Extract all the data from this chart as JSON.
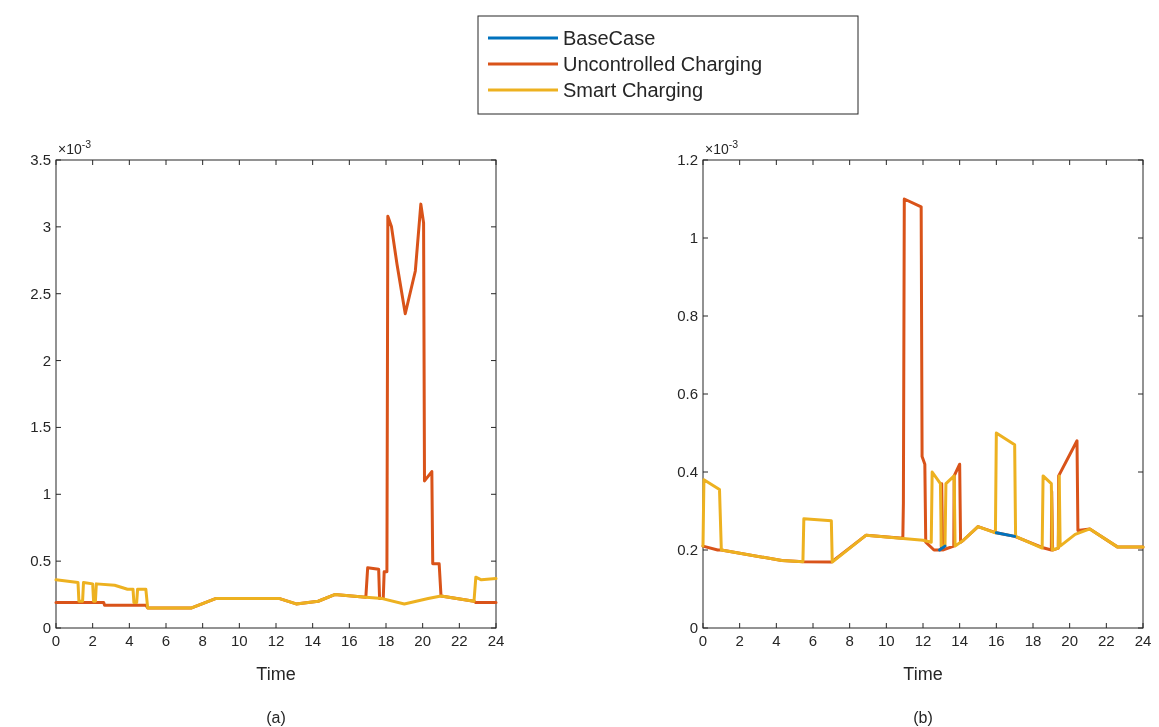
{
  "chart_data": [
    {
      "type": "line",
      "xlabel": "Time",
      "annotations": [
        "×10$^{-3}$",
        "(a)"
      ],
      "xlim": [
        0,
        24
      ],
      "xticks": [
        0,
        2,
        4,
        6,
        8,
        10,
        12,
        14,
        16,
        18,
        20,
        22,
        24
      ],
      "ylim": [
        0,
        3.5
      ],
      "yticks": [
        0,
        0.5,
        1,
        1.5,
        2,
        2.5,
        3,
        3.5
      ],
      "series": [
        {
          "color": "#d95319",
          "x": [
            0,
            2.6,
            2.65,
            4.9,
            5.0,
            7.4,
            8.7,
            12.2,
            13.1,
            14.3,
            15.2,
            16.9,
            17.0,
            17.6,
            17.65,
            17.85,
            17.9,
            18.05,
            18.1,
            18.3,
            18.6,
            19.05,
            19.6,
            19.9,
            20.05,
            20.1,
            20.5,
            20.55,
            20.9,
            21.0,
            22.8,
            22.9,
            24
          ],
          "values": [
            0.19,
            0.19,
            0.17,
            0.17,
            0.15,
            0.15,
            0.22,
            0.22,
            0.18,
            0.2,
            0.25,
            0.23,
            0.45,
            0.44,
            0.22,
            0.22,
            0.42,
            0.42,
            3.08,
            3.0,
            2.72,
            2.35,
            2.67,
            3.17,
            3.03,
            1.1,
            1.17,
            0.48,
            0.48,
            0.24,
            0.2,
            0.19,
            0.19
          ]
        },
        {
          "color": "#edb120",
          "x": [
            0,
            1.2,
            1.25,
            1.45,
            1.5,
            2.0,
            2.05,
            2.15,
            2.2,
            3.2,
            3.9,
            4.2,
            4.25,
            4.4,
            4.45,
            4.9,
            5.0,
            7.4,
            8.7,
            12.2,
            13.1,
            14.3,
            15.2,
            16.9,
            17.8,
            19.0,
            20.3,
            21.0,
            22.8,
            22.9,
            23.2,
            24
          ],
          "values": [
            0.36,
            0.34,
            0.2,
            0.2,
            0.34,
            0.33,
            0.2,
            0.2,
            0.33,
            0.32,
            0.29,
            0.29,
            0.19,
            0.19,
            0.29,
            0.29,
            0.15,
            0.15,
            0.22,
            0.22,
            0.18,
            0.2,
            0.25,
            0.23,
            0.22,
            0.18,
            0.22,
            0.24,
            0.2,
            0.38,
            0.36,
            0.37
          ]
        }
      ]
    },
    {
      "type": "line",
      "xlabel": "Time",
      "annotations": [
        "×10$^{-3}$",
        "(b)"
      ],
      "xlim": [
        0,
        24
      ],
      "xticks": [
        0,
        2,
        4,
        6,
        8,
        10,
        12,
        14,
        16,
        18,
        20,
        22,
        24
      ],
      "ylim": [
        0,
        1.2
      ],
      "yticks": [
        0,
        0.2,
        0.4,
        0.6,
        0.8,
        1,
        1.2
      ],
      "legend": "top",
      "series": [
        {
          "name": "BaseCase",
          "color": "#0072bd",
          "x": [
            12.9,
            13.2,
            14,
            16.0,
            17.0
          ],
          "values": [
            0.2,
            0.21,
            null,
            0.244,
            0.235
          ]
        },
        {
          "name": "Uncontrolled Charging",
          "color": "#d95319",
          "x": [
            0,
            0.8,
            1.0,
            4.3,
            5.5,
            7.0,
            8.9,
            10.9,
            10.93,
            10.98,
            11.9,
            11.95,
            12.1,
            12.15,
            12.6,
            13.0,
            13.02,
            13.07,
            13.68,
            13.7,
            14.0,
            14.05,
            14.2,
            15.0,
            16.0,
            17.0,
            18.6,
            19.0,
            19.02,
            19.07,
            19.38,
            19.4,
            20.4,
            20.45,
            21.1,
            22.6,
            24
          ],
          "values": [
            0.21,
            0.2,
            0.2,
            0.173,
            0.17,
            0.169,
            0.238,
            0.23,
            0.32,
            1.1,
            1.08,
            0.44,
            0.42,
            0.22,
            0.2,
            0.2,
            0.37,
            0.2,
            0.21,
            0.39,
            0.42,
            0.22,
            0.225,
            0.26,
            0.244,
            0.235,
            0.205,
            0.2,
            0.35,
            0.2,
            0.205,
            0.39,
            0.48,
            0.25,
            0.254,
            0.208,
            0.208
          ]
        },
        {
          "name": "Smart Charging",
          "color": "#edb120",
          "x": [
            0,
            0.05,
            0.9,
            1.0,
            4.3,
            5.45,
            5.5,
            7.0,
            7.05,
            8.9,
            12.0,
            12.45,
            12.5,
            12.95,
            13.0,
            13.2,
            13.25,
            13.7,
            13.75,
            14.2,
            15.0,
            15.95,
            16.0,
            17.0,
            17.05,
            18.5,
            18.55,
            19.0,
            19.05,
            19.38,
            19.43,
            19.48,
            20.3,
            21.1,
            22.6,
            24
          ],
          "values": [
            0.21,
            0.38,
            0.355,
            0.2,
            0.173,
            0.17,
            0.28,
            0.275,
            0.169,
            0.238,
            0.225,
            0.22,
            0.4,
            0.37,
            0.21,
            0.21,
            0.37,
            0.39,
            0.21,
            0.225,
            0.26,
            0.244,
            0.5,
            0.47,
            0.235,
            0.205,
            0.39,
            0.37,
            0.2,
            0.205,
            0.39,
            0.21,
            0.24,
            0.254,
            0.208,
            0.208
          ]
        }
      ]
    }
  ]
}
